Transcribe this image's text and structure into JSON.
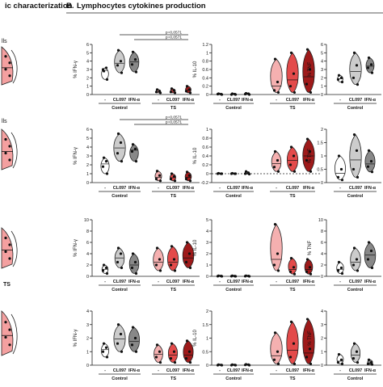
{
  "panel_a_title": "ic characterization",
  "panel_a_labels": [
    "lls",
    "lls",
    "TS"
  ],
  "panel_b_letter": "B.",
  "panel_b_title": "Lymphocytes cytokines production",
  "groups": {
    "control": "Control",
    "ts": "TS"
  },
  "conditions": [
    "-",
    "CL097",
    "IFN-α"
  ],
  "significance": [
    {
      "row": 0,
      "label": "p=0,0571",
      "from": 1,
      "to": 5
    },
    {
      "row": 0,
      "label": "p=0,0571",
      "from": 2,
      "to": 5
    },
    {
      "row": 1,
      "label": "p=0,0571",
      "from": 1,
      "to": 5
    },
    {
      "row": 1,
      "label": "p=0,0571",
      "from": 2,
      "to": 5
    }
  ],
  "colors": {
    "control_dash": "#ffffff",
    "control_cl097": "#cccccc",
    "control_ifn": "#888888",
    "ts_dash": "#f5b0b0",
    "ts_cl097": "#e34a4a",
    "ts_ifn": "#9e1a1a",
    "panel_a_fill": "#f4a0a0"
  },
  "chart_data": [
    {
      "type": "violin",
      "row": 0,
      "ylabel": "% IFN-γ",
      "ylim": [
        0,
        6
      ],
      "yticks": [
        0,
        1,
        2,
        3,
        4,
        5,
        6
      ],
      "series": [
        {
          "group": "Control",
          "condition": "-",
          "values": [
            2.8,
            3.2,
            3.0,
            1.8
          ]
        },
        {
          "group": "Control",
          "condition": "CL097",
          "values": [
            5.3,
            4.0,
            3.5,
            2.6
          ]
        },
        {
          "group": "Control",
          "condition": "IFN-α",
          "values": [
            5.1,
            4.2,
            3.6,
            2.7
          ]
        },
        {
          "group": "TS",
          "condition": "-",
          "values": [
            0.6,
            0.4,
            0.3,
            0.2
          ]
        },
        {
          "group": "TS",
          "condition": "CL097",
          "values": [
            0.7,
            0.5,
            0.3,
            0.2
          ]
        },
        {
          "group": "TS",
          "condition": "IFN-α",
          "values": [
            1.0,
            0.6,
            0.4,
            0.2
          ]
        }
      ]
    },
    {
      "type": "violin",
      "row": 0,
      "ylabel": "% IL-10",
      "ylim": [
        0,
        1.2
      ],
      "yticks": [
        0,
        0.2,
        0.4,
        0.6,
        0.8,
        1.0,
        1.2
      ],
      "series": [
        {
          "group": "Control",
          "condition": "-",
          "values": [
            0.02,
            0.01,
            0.01,
            0.0
          ]
        },
        {
          "group": "Control",
          "condition": "CL097",
          "values": [
            0.02,
            0.01,
            0.0,
            0.0
          ]
        },
        {
          "group": "Control",
          "condition": "IFN-α",
          "values": [
            0.03,
            0.02,
            0.01,
            0.0
          ]
        },
        {
          "group": "TS",
          "condition": "-",
          "values": [
            0.85,
            0.3,
            0.1,
            0.05
          ]
        },
        {
          "group": "TS",
          "condition": "CL097",
          "values": [
            1.0,
            0.5,
            0.2,
            0.05
          ]
        },
        {
          "group": "TS",
          "condition": "IFN-α",
          "values": [
            1.08,
            0.6,
            0.25,
            0.05
          ]
        }
      ]
    },
    {
      "type": "violin",
      "row": 0,
      "ylabel": "% TNF",
      "ylim": [
        0,
        6
      ],
      "yticks": [
        0,
        1,
        2,
        3,
        4,
        5,
        6
      ],
      "series": [
        {
          "group": "Control",
          "condition": "-",
          "values": [
            2.3,
            2.0,
            1.8,
            1.5
          ]
        },
        {
          "group": "Control",
          "condition": "CL097",
          "values": [
            5.0,
            3.5,
            2.0,
            1.2
          ]
        },
        {
          "group": "Control",
          "condition": "IFN-α",
          "values": [
            4.4,
            3.6,
            3.2,
            2.6
          ]
        }
      ]
    },
    {
      "type": "violin",
      "row": 1,
      "ylabel": "% IFN-γ",
      "ylim": [
        0,
        6
      ],
      "yticks": [
        0,
        1,
        2,
        3,
        4,
        5,
        6
      ],
      "series": [
        {
          "group": "Control",
          "condition": "-",
          "values": [
            2.8,
            2.4,
            1.8,
            1.0
          ]
        },
        {
          "group": "Control",
          "condition": "CL097",
          "values": [
            5.5,
            4.5,
            3.3,
            2.4
          ]
        },
        {
          "group": "Control",
          "condition": "IFN-α",
          "values": [
            4.3,
            3.8,
            3.5,
            2.4
          ]
        },
        {
          "group": "TS",
          "condition": "-",
          "values": [
            1.3,
            0.8,
            0.4,
            0.2
          ]
        },
        {
          "group": "TS",
          "condition": "CL097",
          "values": [
            1.0,
            0.7,
            0.4,
            0.2
          ]
        },
        {
          "group": "TS",
          "condition": "IFN-α",
          "values": [
            1.2,
            0.8,
            0.4,
            0.2
          ]
        }
      ]
    },
    {
      "type": "violin",
      "row": 1,
      "ylabel": "% IL-10",
      "ylim": [
        -0.2,
        1.0
      ],
      "yticks": [
        -0.2,
        0.0,
        0.2,
        0.4,
        0.6,
        0.8,
        1.0
      ],
      "series": [
        {
          "group": "Control",
          "condition": "-",
          "values": [
            0.01,
            0.0,
            0.0,
            0.0
          ]
        },
        {
          "group": "Control",
          "condition": "CL097",
          "values": [
            0.01,
            0.0,
            0.0,
            0.0
          ]
        },
        {
          "group": "Control",
          "condition": "IFN-α",
          "values": [
            0.05,
            0.02,
            0.0,
            -0.01
          ]
        },
        {
          "group": "TS",
          "condition": "-",
          "values": [
            0.5,
            0.3,
            0.15,
            0.05
          ]
        },
        {
          "group": "TS",
          "condition": "CL097",
          "values": [
            0.6,
            0.4,
            0.2,
            0.05
          ]
        },
        {
          "group": "TS",
          "condition": "IFN-α",
          "values": [
            0.78,
            0.5,
            0.3,
            0.05
          ]
        }
      ]
    },
    {
      "type": "violin",
      "row": 1,
      "ylabel": "% TNF",
      "ylim": [
        0,
        2
      ],
      "yticks": [
        0.0,
        0.5,
        1.0,
        1.5,
        2.0
      ],
      "series": [
        {
          "group": "Control",
          "condition": "-",
          "values": [
            1.0,
            0.5,
            0.2,
            0.1
          ]
        },
        {
          "group": "Control",
          "condition": "CL097",
          "values": [
            1.8,
            1.2,
            0.5,
            0.2
          ]
        },
        {
          "group": "Control",
          "condition": "IFN-α",
          "values": [
            1.2,
            0.8,
            0.6,
            0.4
          ]
        }
      ]
    },
    {
      "type": "violin",
      "row": 2,
      "ylabel": "% IFN-γ",
      "ylim": [
        0,
        10
      ],
      "yticks": [
        0,
        2,
        4,
        6,
        8,
        10
      ],
      "series": [
        {
          "group": "Control",
          "condition": "-",
          "values": [
            2.0,
            1.5,
            1.0,
            0.5
          ]
        },
        {
          "group": "Control",
          "condition": "CL097",
          "values": [
            5.0,
            4.0,
            2.5,
            1.5
          ]
        },
        {
          "group": "Control",
          "condition": "IFN-α",
          "values": [
            4.0,
            2.5,
            1.5,
            0.5
          ]
        },
        {
          "group": "TS",
          "condition": "-",
          "values": [
            5.0,
            3.0,
            2.0,
            1.0
          ]
        },
        {
          "group": "TS",
          "condition": "CL097",
          "values": [
            5.3,
            3.0,
            2.0,
            1.0
          ]
        },
        {
          "group": "TS",
          "condition": "IFN-α",
          "values": [
            6.0,
            4.0,
            2.5,
            1.5
          ]
        }
      ]
    },
    {
      "type": "violin",
      "row": 2,
      "ylabel": "% IL-10",
      "ylim": [
        0,
        5
      ],
      "yticks": [
        0,
        1,
        2,
        3,
        4,
        5
      ],
      "series": [
        {
          "group": "Control",
          "condition": "-",
          "values": [
            0.05,
            0.03,
            0.01,
            0.0
          ]
        },
        {
          "group": "Control",
          "condition": "CL097",
          "values": [
            0.05,
            0.02,
            0.01,
            0.0
          ]
        },
        {
          "group": "Control",
          "condition": "IFN-α",
          "values": [
            0.05,
            0.03,
            0.01,
            0.0
          ]
        },
        {
          "group": "TS",
          "condition": "-",
          "values": [
            4.6,
            2.0,
            1.0,
            0.5
          ]
        },
        {
          "group": "TS",
          "condition": "CL097",
          "values": [
            1.6,
            0.8,
            0.4,
            0.2
          ]
        },
        {
          "group": "TS",
          "condition": "IFN-α",
          "values": [
            1.5,
            0.8,
            0.4,
            0.2
          ]
        }
      ]
    },
    {
      "type": "violin",
      "row": 2,
      "ylabel": "% TNF",
      "ylim": [
        0,
        10
      ],
      "yticks": [
        0,
        2,
        4,
        6,
        8,
        10
      ],
      "series": [
        {
          "group": "Control",
          "condition": "-",
          "values": [
            2.5,
            1.5,
            1.0,
            0.5
          ]
        },
        {
          "group": "Control",
          "condition": "CL097",
          "values": [
            5.0,
            3.0,
            2.0,
            1.0
          ]
        },
        {
          "group": "Control",
          "condition": "IFN-α",
          "values": [
            6.0,
            4.5,
            3.0,
            1.5
          ]
        }
      ]
    },
    {
      "type": "violin",
      "row": 3,
      "ylabel": "% IFN-γ",
      "ylim": [
        0,
        4
      ],
      "yticks": [
        0,
        1,
        2,
        3,
        4
      ],
      "series": [
        {
          "group": "Control",
          "condition": "-",
          "values": [
            1.6,
            1.3,
            1.0,
            0.6
          ]
        },
        {
          "group": "Control",
          "condition": "CL097",
          "values": [
            3.0,
            2.3,
            1.6,
            1.0
          ]
        },
        {
          "group": "Control",
          "condition": "IFN-α",
          "values": [
            2.8,
            2.0,
            1.5,
            1.0
          ]
        },
        {
          "group": "TS",
          "condition": "-",
          "values": [
            1.5,
            1.0,
            0.6,
            0.2
          ]
        },
        {
          "group": "TS",
          "condition": "CL097",
          "values": [
            1.6,
            1.0,
            0.5,
            0.2
          ]
        },
        {
          "group": "TS",
          "condition": "IFN-α",
          "values": [
            1.8,
            1.0,
            0.5,
            0.2
          ]
        }
      ]
    },
    {
      "type": "violin",
      "row": 3,
      "ylabel": "% IL-10",
      "ylim": [
        0,
        2
      ],
      "yticks": [
        0.0,
        0.5,
        1.0,
        1.5,
        2.0
      ],
      "series": [
        {
          "group": "Control",
          "condition": "-",
          "values": [
            0.02,
            0.01,
            0.0,
            0.0
          ]
        },
        {
          "group": "Control",
          "condition": "CL097",
          "values": [
            0.02,
            0.01,
            0.0,
            0.0
          ]
        },
        {
          "group": "Control",
          "condition": "IFN-α",
          "values": [
            0.03,
            0.02,
            0.01,
            0.0
          ]
        },
        {
          "group": "TS",
          "condition": "-",
          "values": [
            1.2,
            0.5,
            0.2,
            0.05
          ]
        },
        {
          "group": "TS",
          "condition": "CL097",
          "values": [
            1.6,
            0.8,
            0.3,
            0.05
          ]
        },
        {
          "group": "TS",
          "condition": "IFN-α",
          "values": [
            1.7,
            0.6,
            0.3,
            0.05
          ]
        }
      ]
    },
    {
      "type": "violin",
      "row": 3,
      "ylabel": "% TNF",
      "ylim": [
        0,
        4
      ],
      "yticks": [
        0,
        1,
        2,
        3,
        4
      ],
      "series": [
        {
          "group": "Control",
          "condition": "-",
          "values": [
            0.8,
            0.4,
            0.2,
            0.1
          ]
        },
        {
          "group": "Control",
          "condition": "CL097",
          "values": [
            1.6,
            1.0,
            0.5,
            0.2
          ]
        },
        {
          "group": "Control",
          "condition": "IFN-α",
          "values": [
            0.4,
            0.2,
            0.1,
            0.05
          ]
        }
      ]
    }
  ]
}
